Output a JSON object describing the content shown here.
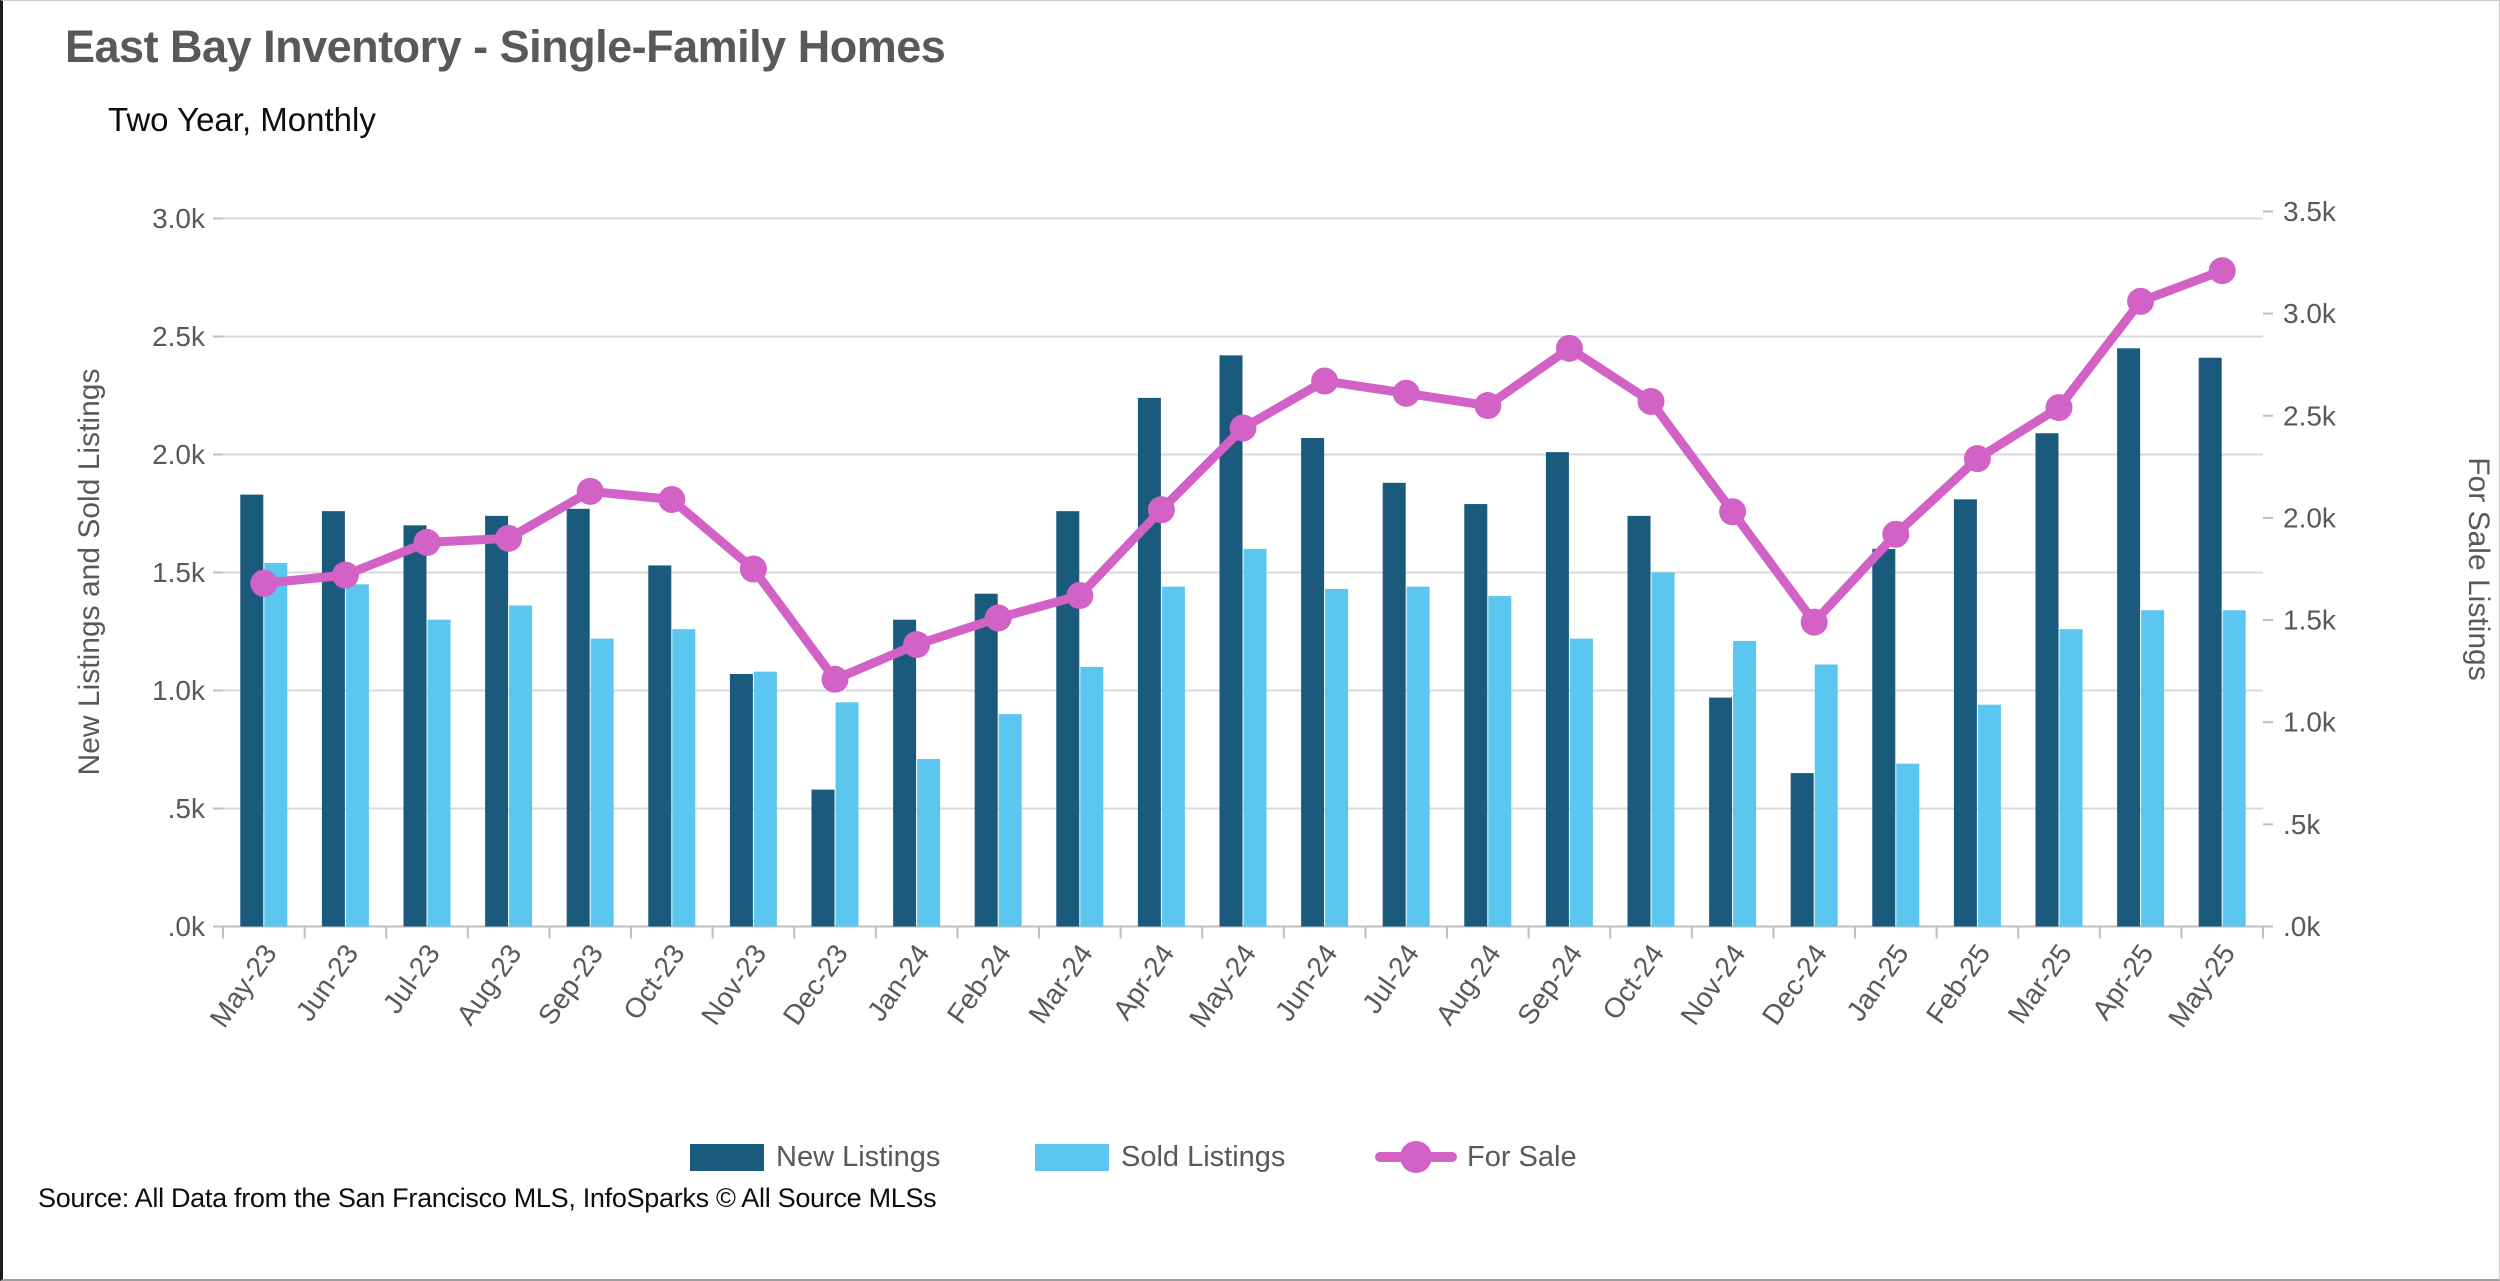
{
  "header": {
    "title": "East Bay Inventory - Single-Family Homes",
    "subtitle": "Two Year, Monthly"
  },
  "source_note": "Source: All Data from the San Francisco MLS, InfoSparks © All Source MLSs",
  "colors": {
    "new_listings": "#1A5A7D",
    "sold_listings": "#5BC6EF",
    "for_sale": "#D262C5",
    "gridline": "#D9D9D9",
    "axis_line": "#BFBFBF",
    "tick_text": "#595959",
    "title_text": "#595959"
  },
  "legend": [
    {
      "label": "New Listings",
      "marker": "bar",
      "color": "#1A5A7D"
    },
    {
      "label": "Sold Listings",
      "marker": "bar",
      "color": "#5BC6EF"
    },
    {
      "label": "For Sale",
      "marker": "line",
      "color": "#D262C5"
    }
  ],
  "chart_data": {
    "type": "bar",
    "subtype": "grouped-bars-with-line-overlay",
    "title": "East Bay Inventory - Single-Family Homes",
    "subtitle": "Two Year, Monthly",
    "grid": true,
    "legend_position": "bottom",
    "categories": [
      "May-23",
      "Jun-23",
      "Jul-23",
      "Aug-23",
      "Sep-23",
      "Oct-23",
      "Nov-23",
      "Dec-23",
      "Jan-24",
      "Feb-24",
      "Mar-24",
      "Apr-24",
      "May-24",
      "Jun-24",
      "Jul-24",
      "Aug-24",
      "Sep-24",
      "Oct-24",
      "Nov-24",
      "Dec-24",
      "Jan-25",
      "Feb-25",
      "Mar-25",
      "Apr-25",
      "May-25"
    ],
    "units": "thousands of listings",
    "series": [
      {
        "name": "New Listings",
        "type": "bar",
        "axis": "left",
        "color": "#1A5A7D",
        "values": [
          1.83,
          1.76,
          1.7,
          1.74,
          1.77,
          1.53,
          1.07,
          0.58,
          1.3,
          1.41,
          1.76,
          2.24,
          2.42,
          2.07,
          1.88,
          1.79,
          2.01,
          1.74,
          0.97,
          0.65,
          1.6,
          1.81,
          2.09,
          2.45,
          2.41
        ]
      },
      {
        "name": "Sold Listings",
        "type": "bar",
        "axis": "left",
        "color": "#5BC6EF",
        "values": [
          1.54,
          1.45,
          1.3,
          1.36,
          1.22,
          1.26,
          1.08,
          0.95,
          0.71,
          0.9,
          1.1,
          1.44,
          1.6,
          1.43,
          1.44,
          1.4,
          1.22,
          1.5,
          1.21,
          1.11,
          0.69,
          0.94,
          1.26,
          1.34,
          1.34
        ]
      },
      {
        "name": "For Sale",
        "type": "line",
        "axis": "right",
        "color": "#D262C5",
        "values": [
          1.68,
          1.72,
          1.88,
          1.9,
          2.13,
          2.09,
          1.75,
          1.21,
          1.38,
          1.51,
          1.62,
          2.04,
          2.44,
          2.67,
          2.61,
          2.55,
          2.83,
          2.57,
          2.03,
          1.49,
          1.92,
          2.29,
          2.54,
          3.06,
          3.21
        ]
      }
    ],
    "left_axis": {
      "title": "New Listings and Sold Listings",
      "ticks": [
        "3.0k",
        "2.5k",
        "2.0k",
        "1.5k",
        "1.0k",
        ".5k",
        ".0k"
      ],
      "tick_values": [
        3.0,
        2.5,
        2.0,
        1.5,
        1.0,
        0.5,
        0.0
      ],
      "range": [
        0,
        3000
      ]
    },
    "right_axis": {
      "title": "For Sale Listings",
      "ticks": [
        "3.5k",
        "3.0k",
        "2.5k",
        "2.0k",
        "1.5k",
        "1.0k",
        ".5k",
        ".0k"
      ],
      "tick_values": [
        3.5,
        3.0,
        2.5,
        2.0,
        1.5,
        1.0,
        0.5,
        0.0
      ],
      "range": [
        0,
        3500
      ]
    }
  }
}
